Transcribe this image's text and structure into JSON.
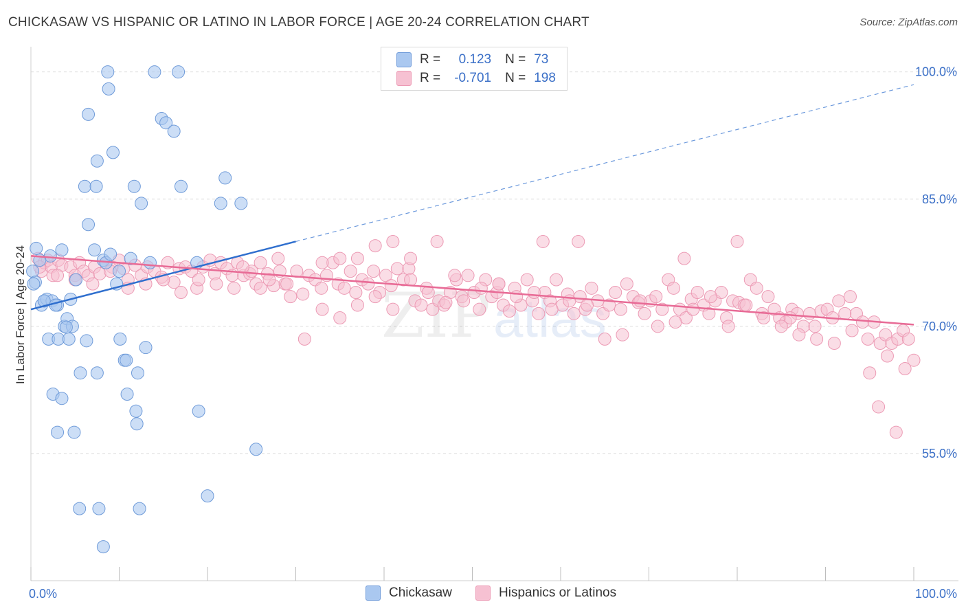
{
  "title": "CHICKASAW VS HISPANIC OR LATINO IN LABOR FORCE | AGE 20-24 CORRELATION CHART",
  "source": "Source: ZipAtlas.com",
  "colors": {
    "blue_fill": "#aac8f0",
    "blue_stroke": "#6f9bd9",
    "blue_line": "#2f6fce",
    "pink_fill": "#f6c1d2",
    "pink_stroke": "#ec9ab4",
    "pink_line": "#e86b96",
    "axis_text": "#3a6fc7",
    "grid": "#dcdcdc"
  },
  "legend": {
    "rows": [
      {
        "r_label": "R =",
        "r_value": "0.123",
        "n_label": "N =",
        "n_value": "73"
      },
      {
        "r_label": "R =",
        "r_value": "-0.701",
        "n_label": "N =",
        "n_value": "198"
      }
    ]
  },
  "bottom_legend": {
    "chickasaw": "Chickasaw",
    "hispanic": "Hispanics or Latinos"
  },
  "watermark": {
    "zip": "ZIP",
    "atlas": "atlas"
  },
  "chart_data": {
    "type": "scatter",
    "title": "CHICKASAW VS HISPANIC OR LATINO IN LABOR FORCE | AGE 20-24 CORRELATION CHART",
    "xlabel": "",
    "ylabel": "In Labor Force | Age 20-24",
    "xlim": [
      0,
      100
    ],
    "ylim": [
      40,
      102
    ],
    "x_tick_labels": [
      "0.0%",
      "100.0%"
    ],
    "y_ticks": [
      55,
      70,
      85,
      100
    ],
    "y_tick_labels": [
      "55.0%",
      "70.0%",
      "85.0%",
      "100.0%"
    ],
    "grid": true,
    "legend_position": "top-center",
    "series": [
      {
        "name": "Chickasaw",
        "r": 0.123,
        "n": 73,
        "trend": {
          "x0": 0,
          "y0": 72.0,
          "x1": 30,
          "y1": 80.0,
          "dashed_to_x": 100,
          "dashed_to_y": 98.5
        },
        "points": [
          [
            0.2,
            76.5
          ],
          [
            0.5,
            75.2
          ],
          [
            0.6,
            79.2
          ],
          [
            1.2,
            72.5
          ],
          [
            1.5,
            73.0
          ],
          [
            1.8,
            73.2
          ],
          [
            2.2,
            78.3
          ],
          [
            2.4,
            73.0
          ],
          [
            2.0,
            68.5
          ],
          [
            2.5,
            62.0
          ],
          [
            3.0,
            72.5
          ],
          [
            3.5,
            79.0
          ],
          [
            3.8,
            70.0
          ],
          [
            4.1,
            70.9
          ],
          [
            4.5,
            73.2
          ],
          [
            4.7,
            70.0
          ],
          [
            3.1,
            68.5
          ],
          [
            3.5,
            61.5
          ],
          [
            4.3,
            68.5
          ],
          [
            5.1,
            75.5
          ],
          [
            5.6,
            64.5
          ],
          [
            6.3,
            68.3
          ],
          [
            6.5,
            82.0
          ],
          [
            6.1,
            86.5
          ],
          [
            6.5,
            95.0
          ],
          [
            7.2,
            79.0
          ],
          [
            7.5,
            64.5
          ],
          [
            7.4,
            86.5
          ],
          [
            7.5,
            89.5
          ],
          [
            8.2,
            77.8
          ],
          [
            8.5,
            77.5
          ],
          [
            9.0,
            78.5
          ],
          [
            8.8,
            98.0
          ],
          [
            8.7,
            100.0
          ],
          [
            9.3,
            90.5
          ],
          [
            9.7,
            75.0
          ],
          [
            10.0,
            76.5
          ],
          [
            10.1,
            68.5
          ],
          [
            10.6,
            66.0
          ],
          [
            10.8,
            66.0
          ],
          [
            10.9,
            62.0
          ],
          [
            11.3,
            78.0
          ],
          [
            11.7,
            86.5
          ],
          [
            11.9,
            60.0
          ],
          [
            12.0,
            58.5
          ],
          [
            12.1,
            64.5
          ],
          [
            12.5,
            84.5
          ],
          [
            13.0,
            67.5
          ],
          [
            13.5,
            77.5
          ],
          [
            14.0,
            100.0
          ],
          [
            14.8,
            94.5
          ],
          [
            15.3,
            94.0
          ],
          [
            16.2,
            93.0
          ],
          [
            16.7,
            100.0
          ],
          [
            17.0,
            86.5
          ],
          [
            18.8,
            77.5
          ],
          [
            19.0,
            60.0
          ],
          [
            20.0,
            50.0
          ],
          [
            21.5,
            84.5
          ],
          [
            22.0,
            87.5
          ],
          [
            23.8,
            84.5
          ],
          [
            25.5,
            55.5
          ],
          [
            4.9,
            57.5
          ],
          [
            5.5,
            48.5
          ],
          [
            7.7,
            48.5
          ],
          [
            8.2,
            44.0
          ],
          [
            12.3,
            48.5
          ],
          [
            3.0,
            57.5
          ],
          [
            1.0,
            77.8
          ],
          [
            0.3,
            75.0
          ],
          [
            1.5,
            73.0
          ],
          [
            4.0,
            69.9
          ],
          [
            2.8,
            72.5
          ]
        ]
      },
      {
        "name": "Hispanics or Latinos",
        "r": -0.701,
        "n": 198,
        "trend": {
          "x0": 0,
          "y0": 78.3,
          "x1": 100,
          "y1": 70.2
        },
        "points": [
          [
            0.8,
            78.0
          ],
          [
            1.2,
            76.5
          ],
          [
            1.5,
            77.5
          ],
          [
            1.9,
            77.8
          ],
          [
            2.3,
            77.0
          ],
          [
            2.5,
            76.0
          ],
          [
            3.1,
            77.8
          ],
          [
            3.5,
            77.2
          ],
          [
            4.5,
            77.0
          ],
          [
            5.0,
            76.0
          ],
          [
            5.5,
            77.5
          ],
          [
            6.0,
            76.5
          ],
          [
            6.5,
            76.0
          ],
          [
            7.2,
            77.0
          ],
          [
            7.8,
            76.2
          ],
          [
            8.5,
            77.5
          ],
          [
            9.2,
            77.0
          ],
          [
            10.0,
            77.8
          ],
          [
            10.5,
            76.8
          ],
          [
            11.0,
            75.5
          ],
          [
            11.8,
            77.2
          ],
          [
            12.5,
            76.0
          ],
          [
            13.2,
            77.0
          ],
          [
            14.0,
            76.5
          ],
          [
            14.8,
            75.8
          ],
          [
            15.5,
            77.5
          ],
          [
            16.2,
            75.2
          ],
          [
            16.8,
            76.8
          ],
          [
            17.5,
            77.0
          ],
          [
            18.2,
            76.5
          ],
          [
            18.8,
            74.5
          ],
          [
            19.5,
            77.0
          ],
          [
            20.3,
            77.8
          ],
          [
            20.8,
            76.2
          ],
          [
            21.5,
            77.5
          ],
          [
            22.2,
            76.8
          ],
          [
            22.8,
            76.0
          ],
          [
            23.4,
            77.5
          ],
          [
            24.1,
            76.0
          ],
          [
            24.8,
            76.2
          ],
          [
            25.5,
            75.0
          ],
          [
            26.0,
            74.5
          ],
          [
            26.8,
            76.2
          ],
          [
            27.5,
            74.8
          ],
          [
            28.2,
            76.5
          ],
          [
            28.8,
            75.0
          ],
          [
            29.4,
            73.5
          ],
          [
            30.1,
            76.5
          ],
          [
            30.8,
            73.8
          ],
          [
            31.5,
            76.0
          ],
          [
            32.2,
            75.5
          ],
          [
            32.9,
            74.5
          ],
          [
            33.5,
            76.0
          ],
          [
            34.2,
            77.5
          ],
          [
            34.8,
            75.0
          ],
          [
            35.5,
            74.5
          ],
          [
            36.2,
            76.5
          ],
          [
            36.8,
            74.0
          ],
          [
            37.5,
            75.5
          ],
          [
            38.2,
            75.0
          ],
          [
            38.8,
            76.5
          ],
          [
            39.5,
            74.0
          ],
          [
            40.2,
            76.0
          ],
          [
            40.8,
            74.8
          ],
          [
            41.5,
            76.8
          ],
          [
            42.2,
            75.5
          ],
          [
            42.8,
            76.8
          ],
          [
            43.5,
            73.0
          ],
          [
            44.2,
            72.5
          ],
          [
            44.8,
            74.5
          ],
          [
            45.5,
            72.0
          ],
          [
            46.2,
            73.0
          ],
          [
            46.8,
            72.5
          ],
          [
            47.5,
            74.0
          ],
          [
            48.2,
            75.5
          ],
          [
            48.8,
            73.5
          ],
          [
            49.5,
            76.0
          ],
          [
            50.2,
            74.0
          ],
          [
            50.8,
            72.0
          ],
          [
            51.5,
            75.5
          ],
          [
            52.2,
            73.5
          ],
          [
            52.8,
            74.0
          ],
          [
            53.5,
            72.5
          ],
          [
            54.2,
            71.8
          ],
          [
            54.8,
            74.5
          ],
          [
            55.5,
            72.5
          ],
          [
            56.2,
            75.5
          ],
          [
            56.8,
            73.0
          ],
          [
            57.5,
            71.5
          ],
          [
            58.2,
            74.0
          ],
          [
            58.8,
            73.0
          ],
          [
            59.5,
            75.5
          ],
          [
            60.2,
            72.5
          ],
          [
            60.8,
            73.8
          ],
          [
            61.5,
            71.5
          ],
          [
            62.2,
            73.5
          ],
          [
            62.8,
            72.0
          ],
          [
            63.5,
            74.5
          ],
          [
            64.2,
            73.0
          ],
          [
            64.8,
            71.5
          ],
          [
            65.5,
            72.5
          ],
          [
            66.2,
            74.0
          ],
          [
            66.8,
            72.0
          ],
          [
            67.5,
            75.0
          ],
          [
            68.2,
            73.5
          ],
          [
            68.8,
            72.8
          ],
          [
            69.5,
            71.5
          ],
          [
            70.2,
            73.0
          ],
          [
            70.8,
            73.5
          ],
          [
            71.5,
            72.0
          ],
          [
            72.2,
            75.5
          ],
          [
            72.8,
            74.5
          ],
          [
            73.5,
            72.0
          ],
          [
            74.2,
            71.0
          ],
          [
            74.8,
            73.2
          ],
          [
            75.5,
            74.0
          ],
          [
            76.2,
            72.5
          ],
          [
            76.8,
            71.5
          ],
          [
            77.5,
            73.0
          ],
          [
            78.2,
            74.0
          ],
          [
            78.8,
            71.0
          ],
          [
            79.5,
            73.0
          ],
          [
            80.2,
            72.8
          ],
          [
            80.8,
            72.5
          ],
          [
            81.5,
            75.5
          ],
          [
            82.2,
            74.5
          ],
          [
            82.8,
            71.5
          ],
          [
            83.5,
            73.5
          ],
          [
            84.2,
            72.0
          ],
          [
            84.8,
            71.0
          ],
          [
            85.5,
            70.5
          ],
          [
            86.2,
            72.0
          ],
          [
            86.8,
            71.5
          ],
          [
            87.5,
            70.0
          ],
          [
            88.2,
            71.5
          ],
          [
            88.8,
            70.0
          ],
          [
            89.5,
            71.8
          ],
          [
            90.2,
            72.0
          ],
          [
            90.8,
            71.0
          ],
          [
            91.5,
            73.0
          ],
          [
            92.2,
            71.5
          ],
          [
            92.8,
            73.5
          ],
          [
            93.5,
            71.5
          ],
          [
            94.2,
            70.5
          ],
          [
            94.8,
            68.5
          ],
          [
            95.5,
            70.5
          ],
          [
            96.2,
            68.0
          ],
          [
            96.8,
            69.0
          ],
          [
            97.5,
            68.0
          ],
          [
            98.2,
            68.5
          ],
          [
            98.8,
            69.5
          ],
          [
            99.4,
            68.5
          ],
          [
            100.0,
            66.0
          ],
          [
            99.0,
            65.0
          ],
          [
            97.0,
            66.5
          ],
          [
            95.0,
            64.5
          ],
          [
            93.0,
            69.5
          ],
          [
            91.0,
            68.0
          ],
          [
            89.0,
            68.5
          ],
          [
            87.0,
            69.0
          ],
          [
            85.0,
            70.0
          ],
          [
            83.0,
            71.0
          ],
          [
            81.0,
            72.5
          ],
          [
            79.0,
            70.0
          ],
          [
            77.0,
            73.5
          ],
          [
            75.0,
            72.0
          ],
          [
            73.0,
            70.5
          ],
          [
            71.0,
            70.0
          ],
          [
            69.0,
            73.0
          ],
          [
            67.0,
            69.0
          ],
          [
            65.0,
            68.5
          ],
          [
            63.0,
            72.5
          ],
          [
            61.0,
            73.0
          ],
          [
            59.0,
            72.0
          ],
          [
            57.0,
            74.0
          ],
          [
            55.0,
            73.5
          ],
          [
            53.0,
            75.0
          ],
          [
            51.0,
            74.5
          ],
          [
            49.0,
            73.0
          ],
          [
            47.0,
            72.8
          ],
          [
            45.0,
            74.0
          ],
          [
            43.0,
            75.5
          ],
          [
            41.0,
            72.0
          ],
          [
            39.0,
            73.5
          ],
          [
            37.0,
            72.5
          ],
          [
            35.0,
            71.0
          ],
          [
            33.0,
            72.0
          ],
          [
            31.0,
            68.5
          ],
          [
            29.0,
            75.0
          ],
          [
            27.0,
            75.5
          ],
          [
            25.0,
            76.5
          ],
          [
            23.0,
            74.5
          ],
          [
            21.0,
            75.0
          ],
          [
            19.0,
            75.5
          ],
          [
            17.0,
            74.0
          ],
          [
            15.0,
            75.5
          ],
          [
            13.0,
            75.0
          ],
          [
            11.0,
            74.5
          ],
          [
            9.0,
            76.5
          ],
          [
            7.0,
            75.0
          ],
          [
            5.0,
            75.5
          ],
          [
            3.0,
            76.0
          ],
          [
            1.0,
            77.0
          ],
          [
            96.0,
            60.5
          ],
          [
            98.0,
            57.5
          ],
          [
            86.0,
            71.0
          ],
          [
            74.0,
            78.0
          ],
          [
            58.0,
            80.0
          ],
          [
            53.0,
            75.0
          ],
          [
            80.0,
            80.0
          ],
          [
            62.0,
            80.0
          ],
          [
            48.0,
            76.0
          ],
          [
            46.0,
            80.0
          ],
          [
            43.0,
            78.0
          ],
          [
            41.0,
            80.0
          ],
          [
            39.0,
            79.5
          ],
          [
            37.0,
            78.0
          ],
          [
            35.0,
            78.0
          ],
          [
            33.0,
            77.5
          ],
          [
            28.0,
            78.0
          ],
          [
            26.0,
            77.5
          ],
          [
            24.0,
            77.0
          ]
        ]
      }
    ]
  }
}
